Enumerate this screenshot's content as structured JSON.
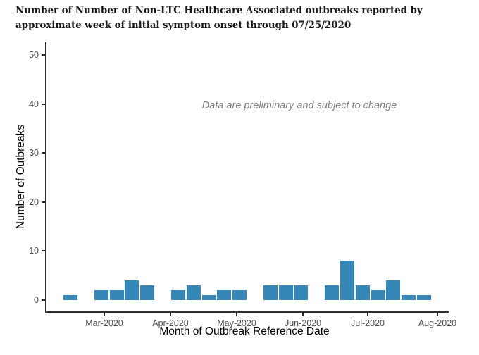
{
  "figure": {
    "title": "Number of Number of Non-LTC Healthcare Associated outbreaks reported by approximate week of initial symptom onset through 07/25/2020"
  },
  "chart_data": {
    "type": "bar",
    "title": "Number of Number of Non-LTC Healthcare Associated outbreaks reported by approximate week of initial symptom onset through 07/25/2020",
    "xlabel": "Month of Outbreak Reference Date",
    "ylabel": "Number of Outbreaks",
    "annotation": "Data are preliminary and subject to change",
    "x_week_start": [
      "2020-02-09",
      "2020-02-16",
      "2020-02-23",
      "2020-03-01",
      "2020-03-08",
      "2020-03-15",
      "2020-03-22",
      "2020-03-29",
      "2020-04-05",
      "2020-04-12",
      "2020-04-19",
      "2020-04-26",
      "2020-05-03",
      "2020-05-10",
      "2020-05-17",
      "2020-05-24",
      "2020-05-31",
      "2020-06-07",
      "2020-06-14",
      "2020-06-21",
      "2020-06-28",
      "2020-07-05",
      "2020-07-12",
      "2020-07-19"
    ],
    "values": [
      1,
      0,
      2,
      2,
      4,
      3,
      0,
      2,
      3,
      1,
      2,
      2,
      0,
      3,
      3,
      3,
      0,
      3,
      8,
      3,
      2,
      4,
      1,
      1
    ],
    "x_tick_labels": [
      "Mar-2020",
      "Apr-2020",
      "May-2020",
      "Jun-2020",
      "Jul-2020",
      "Aug-2020"
    ],
    "y_ticks": [
      0,
      10,
      20,
      30,
      40,
      50
    ],
    "ylim": [
      0,
      52
    ],
    "grid": false,
    "legend": "none",
    "colors": {
      "bar": "#3587b8",
      "axis": "#2e2e2e",
      "tick_label": "#4d4d4d",
      "axis_title": "#000000",
      "title": "#1a1a1a",
      "annotation": "#7e7e7e",
      "background": "#ffffff"
    }
  }
}
